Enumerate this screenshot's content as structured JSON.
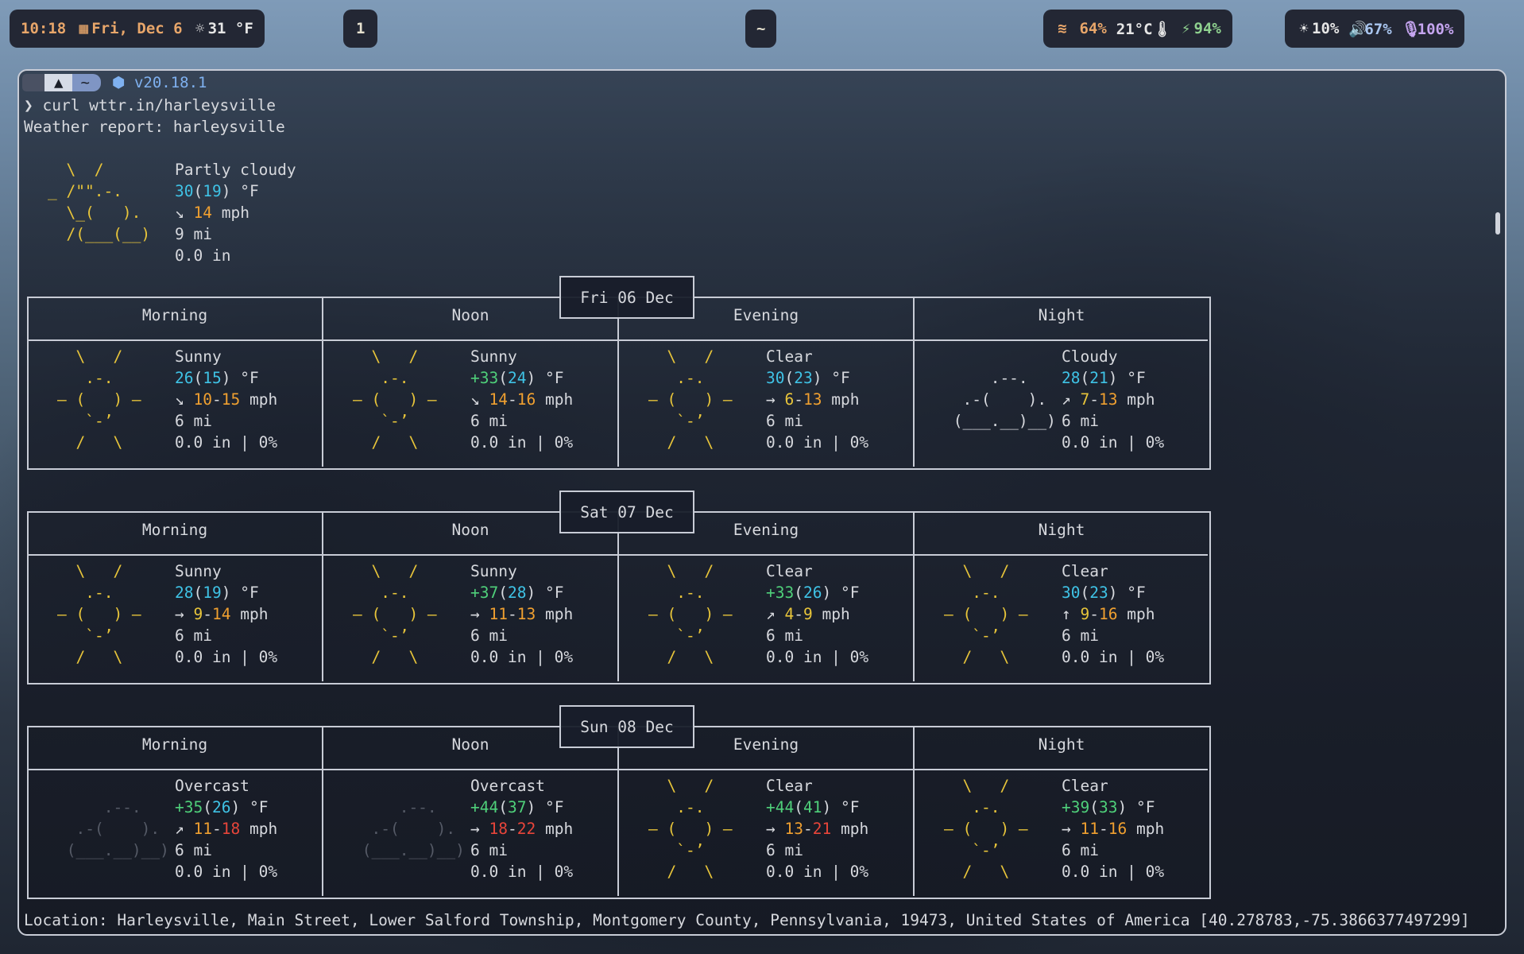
{
  "topbar": {
    "time": "10:18",
    "date": "Fri, Dec  6",
    "weather": "31 °F",
    "workspace": "1",
    "center_label": "~",
    "wifi": "64%",
    "temp": "21°C",
    "battery": "94%",
    "brightness": "10%",
    "volume": "67%",
    "mic": "100%"
  },
  "terminal": {
    "prompt_user": "~",
    "node_version": "v20.18.1",
    "command": "❯ curl wttr.in/harleysville",
    "report_title": "Weather report: harleysville",
    "current": {
      "condition": "Partly cloudy",
      "temp": "30",
      "feels": "19",
      "unit": "°F",
      "wind_dir": "↘",
      "wind": "14",
      "wind_unit": "mph",
      "visibility": "9 mi",
      "precip": "0.0 in"
    },
    "location": "Location: Harleysville, Main Street, Lower Salford Township, Montgomery County, Pennsylvania, 19473, United States of America [40.278783,-75.3866377497299]"
  },
  "columns": [
    "Morning",
    "Noon",
    "Evening",
    "Night"
  ],
  "days": [
    {
      "label": "Fri 06 Dec",
      "periods": [
        {
          "icon": "sunny",
          "condition": "Sunny",
          "temp": "26",
          "feels": "15",
          "dir": "↘",
          "wind_lo": "10",
          "wind_hi": "15",
          "vis": "6 mi",
          "precip": "0.0 in | 0%"
        },
        {
          "icon": "sunny",
          "condition": "Sunny",
          "temp": "+33",
          "feels": "24",
          "dir": "↘",
          "wind_lo": "14",
          "wind_hi": "16",
          "vis": "6 mi",
          "precip": "0.0 in | 0%"
        },
        {
          "icon": "sunny",
          "condition": "Clear",
          "temp": "30",
          "feels": "23",
          "dir": "→",
          "wind_lo": "6",
          "wind_hi": "13",
          "vis": "6 mi",
          "precip": "0.0 in | 0%"
        },
        {
          "icon": "cloudy",
          "condition": "Cloudy",
          "temp": "28",
          "feels": "21",
          "dir": "↗",
          "wind_lo": "7",
          "wind_hi": "13",
          "vis": "6 mi",
          "precip": "0.0 in | 0%"
        }
      ]
    },
    {
      "label": "Sat 07 Dec",
      "periods": [
        {
          "icon": "sunny",
          "condition": "Sunny",
          "temp": "28",
          "feels": "19",
          "dir": "→",
          "wind_lo": "9",
          "wind_hi": "14",
          "vis": "6 mi",
          "precip": "0.0 in | 0%"
        },
        {
          "icon": "sunny",
          "condition": "Sunny",
          "temp": "+37",
          "feels": "28",
          "dir": "→",
          "wind_lo": "11",
          "wind_hi": "13",
          "vis": "6 mi",
          "precip": "0.0 in | 0%"
        },
        {
          "icon": "sunny",
          "condition": "Clear",
          "temp": "+33",
          "feels": "26",
          "dir": "↗",
          "wind_lo": "4",
          "wind_hi": "9",
          "vis": "6 mi",
          "precip": "0.0 in | 0%"
        },
        {
          "icon": "sunny",
          "condition": "Clear",
          "temp": "30",
          "feels": "23",
          "dir": "↑",
          "wind_lo": "9",
          "wind_hi": "16",
          "vis": "6 mi",
          "precip": "0.0 in | 0%"
        }
      ]
    },
    {
      "label": "Sun 08 Dec",
      "periods": [
        {
          "icon": "overcast",
          "condition": "Overcast",
          "temp": "+35",
          "feels": "26",
          "dir": "↗",
          "wind_lo": "11",
          "wind_hi": "18",
          "vis": "6 mi",
          "precip": "0.0 in | 0%"
        },
        {
          "icon": "overcast",
          "condition": "Overcast",
          "temp": "+44",
          "feels": "37",
          "dir": "→",
          "wind_lo": "18",
          "wind_hi": "22",
          "vis": "6 mi",
          "precip": "0.0 in | 0%"
        },
        {
          "icon": "sunny",
          "condition": "Clear",
          "temp": "+44",
          "feels": "41",
          "dir": "→",
          "wind_lo": "13",
          "wind_hi": "21",
          "vis": "6 mi",
          "precip": "0.0 in | 0%"
        },
        {
          "icon": "sunny",
          "condition": "Clear",
          "temp": "+39",
          "feels": "33",
          "dir": "→",
          "wind_lo": "11",
          "wind_hi": "16",
          "vis": "6 mi",
          "precip": "0.0 in | 0%"
        }
      ]
    }
  ]
}
